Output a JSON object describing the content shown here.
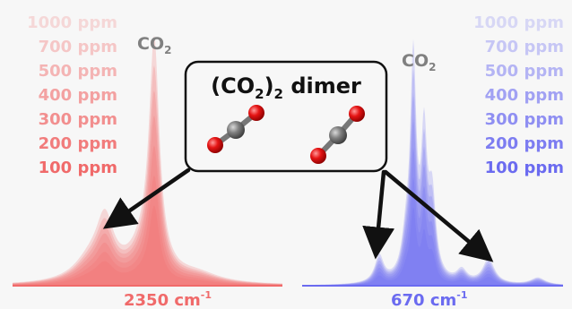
{
  "left_panel": {
    "concentrations": [
      "1000 ppm",
      "700 ppm",
      "500 ppm",
      "400 ppm",
      "300 ppm",
      "200 ppm",
      "100 ppm"
    ],
    "peak_label": "CO",
    "peak_label_sub": "2",
    "axis_label": "2350 cm",
    "axis_label_sup": "-1",
    "color": "#f06a6a"
  },
  "right_panel": {
    "concentrations": [
      "1000 ppm",
      "700 ppm",
      "500 ppm",
      "400 ppm",
      "300 ppm",
      "200 ppm",
      "100 ppm"
    ],
    "peak_label": "CO",
    "peak_label_sub": "2",
    "axis_label": "670 cm",
    "axis_label_sup": "-1",
    "color": "#6b6bf0"
  },
  "dimer_box": {
    "title_a": "(CO",
    "title_sub": "2",
    "title_b": ")",
    "title_sub2": "2",
    "title_c": " dimer"
  },
  "colors": {
    "carbon": "#6f6f6f",
    "oxygen": "#e51414",
    "arrow": "#111111"
  }
}
